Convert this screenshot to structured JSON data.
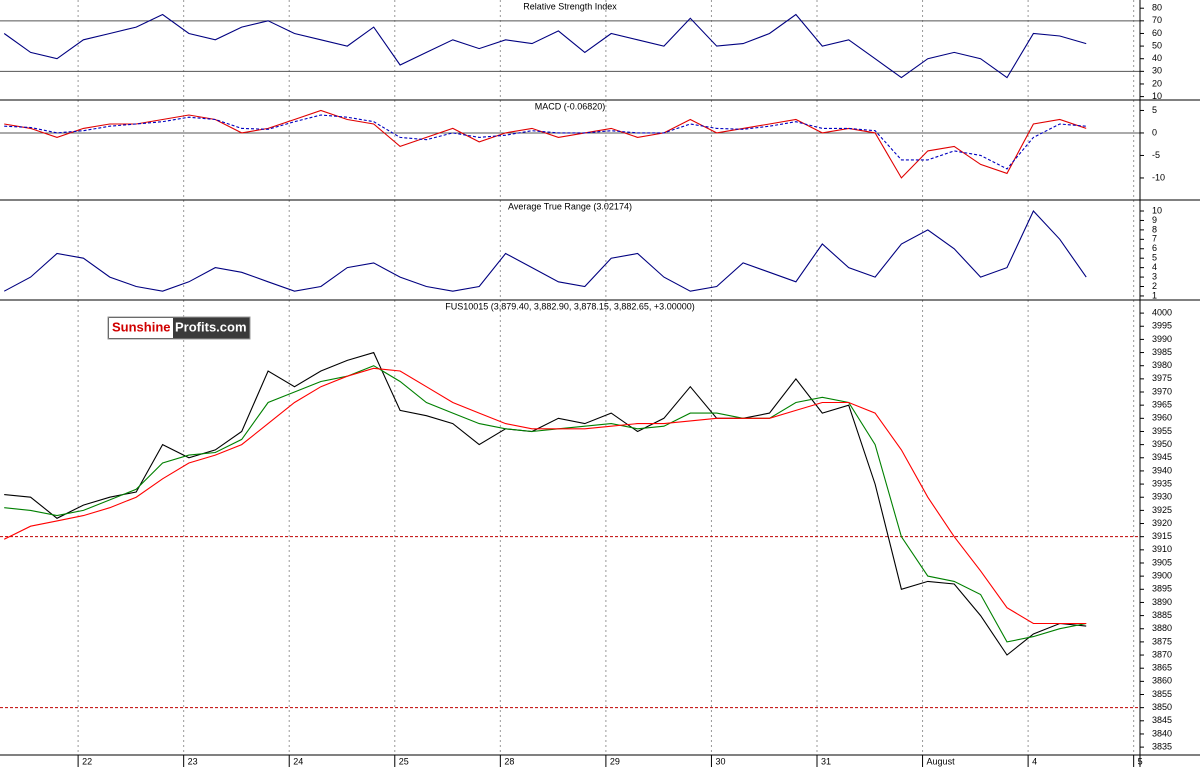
{
  "chart_data": [
    {
      "type": "line",
      "title": "Relative Strength Index",
      "x": [
        -0.7,
        -0.45,
        -0.2,
        0.05,
        0.3,
        0.55,
        0.8,
        1.05,
        1.3,
        1.55,
        1.8,
        2.05,
        2.3,
        2.55,
        2.8,
        3.05,
        3.3,
        3.55,
        3.8,
        4.05,
        4.3,
        4.55,
        4.8,
        5.05,
        5.3,
        5.55,
        5.8,
        6.05,
        6.3,
        6.55,
        6.8,
        7.05,
        7.3,
        7.55,
        7.8,
        8.05,
        8.3,
        8.55,
        8.8,
        9.05,
        9.3,
        9.55
      ],
      "xlim": [
        -0.74,
        10.06
      ],
      "ylim": [
        7.3,
        85.7
      ],
      "yticks": [
        10,
        20,
        30,
        40,
        50,
        60,
        70,
        80
      ],
      "levels": [
        30,
        70
      ],
      "level_color": "#555555",
      "level_dash": false,
      "series": [
        {
          "color": "#000080",
          "dash": false,
          "values": [
            60,
            45,
            40,
            55,
            60,
            65,
            75,
            60,
            55,
            65,
            70,
            60,
            55,
            50,
            65,
            35,
            45,
            55,
            48,
            55,
            52,
            62,
            45,
            60,
            55,
            50,
            72,
            50,
            52,
            60,
            75,
            50,
            55,
            40,
            25,
            40,
            45,
            40,
            25,
            60,
            58,
            52
          ]
        }
      ]
    },
    {
      "type": "line",
      "title": "MACD (-0.06820)",
      "x": [
        -0.7,
        -0.45,
        -0.2,
        0.05,
        0.3,
        0.55,
        0.8,
        1.05,
        1.3,
        1.55,
        1.8,
        2.05,
        2.3,
        2.55,
        2.8,
        3.05,
        3.3,
        3.55,
        3.8,
        4.05,
        4.3,
        4.55,
        4.8,
        5.05,
        5.3,
        5.55,
        5.8,
        6.05,
        6.3,
        6.55,
        6.8,
        7.05,
        7.3,
        7.55,
        7.8,
        8.05,
        8.3,
        8.55,
        8.8,
        9.05,
        9.3,
        9.55
      ],
      "xlim": [
        -0.74,
        10.06
      ],
      "ylim": [
        -14.9,
        7.1
      ],
      "yticks": [
        -10,
        -5,
        0,
        5
      ],
      "levels": [
        0
      ],
      "level_color": "#555555",
      "level_dash": false,
      "series": [
        {
          "color": "#e00000",
          "dash": false,
          "values": [
            2,
            1,
            -1,
            1,
            2,
            2,
            3,
            4,
            3,
            0,
            1,
            3,
            5,
            3,
            2,
            -3,
            -1,
            1,
            -2,
            0,
            1,
            -1,
            0,
            1,
            -1,
            0,
            3,
            0,
            1,
            2,
            3,
            0,
            1,
            0,
            -10,
            -4,
            -3,
            -7,
            -9,
            2,
            3,
            1
          ]
        },
        {
          "color": "#0000c0",
          "dash": true,
          "values": [
            1.5,
            1.2,
            0,
            0.5,
            1.5,
            2,
            2.5,
            3.5,
            3,
            1,
            0.8,
            2.5,
            4,
            3.5,
            2.5,
            -1,
            -1.5,
            0,
            -1,
            -0.5,
            0.5,
            0,
            0,
            0.5,
            0,
            0,
            2,
            1,
            0.8,
            1.5,
            2.5,
            1,
            1,
            0.5,
            -6,
            -6,
            -4,
            -5,
            -8,
            -1,
            2,
            1.5
          ]
        }
      ]
    },
    {
      "type": "line",
      "title": "Average True Range (3.02174)",
      "x": [
        -0.7,
        -0.45,
        -0.2,
        0.05,
        0.3,
        0.55,
        0.8,
        1.05,
        1.3,
        1.55,
        1.8,
        2.05,
        2.3,
        2.55,
        2.8,
        3.05,
        3.3,
        3.55,
        3.8,
        4.05,
        4.3,
        4.55,
        4.8,
        5.05,
        5.3,
        5.55,
        5.8,
        6.05,
        6.3,
        6.55,
        6.8,
        7.05,
        7.3,
        7.55,
        7.8,
        8.05,
        8.3,
        8.55,
        8.8,
        9.05,
        9.3,
        9.55
      ],
      "xlim": [
        -0.74,
        10.06
      ],
      "ylim": [
        0.57,
        11.06
      ],
      "yticks": [
        1,
        2,
        3,
        4,
        5,
        6,
        7,
        8,
        9,
        10
      ],
      "series": [
        {
          "color": "#000080",
          "dash": false,
          "values": [
            1.5,
            3,
            5.5,
            5,
            3,
            2,
            1.5,
            2.5,
            4,
            3.5,
            2.5,
            1.5,
            2,
            4,
            4.5,
            3,
            2,
            1.5,
            2,
            5.5,
            4,
            2.5,
            2,
            5,
            5.5,
            3,
            1.5,
            2,
            4.5,
            3.5,
            2.5,
            6.5,
            4,
            3,
            6.5,
            8,
            6,
            3,
            4,
            10,
            7,
            3
          ]
        }
      ]
    },
    {
      "type": "line",
      "title": "FUS10015 (3,879.40, 3,882.90, 3,878.15, 3,882.65, +3.00000)",
      "x": [
        -0.7,
        -0.45,
        -0.2,
        0.05,
        0.3,
        0.55,
        0.8,
        1.05,
        1.3,
        1.55,
        1.8,
        2.05,
        2.3,
        2.55,
        2.8,
        3.05,
        3.3,
        3.55,
        3.8,
        4.05,
        4.3,
        4.55,
        4.8,
        5.05,
        5.3,
        5.55,
        5.8,
        6.05,
        6.3,
        6.55,
        6.8,
        7.05,
        7.3,
        7.55,
        7.8,
        8.05,
        8.3,
        8.55,
        8.8,
        9.05,
        9.3,
        9.55
      ],
      "xlim": [
        -0.74,
        10.06
      ],
      "ylim": [
        3832,
        4004.6
      ],
      "yticks": [
        3835,
        3840,
        3845,
        3850,
        3855,
        3860,
        3865,
        3870,
        3875,
        3880,
        3885,
        3890,
        3895,
        3900,
        3905,
        3910,
        3915,
        3920,
        3925,
        3930,
        3935,
        3940,
        3945,
        3950,
        3955,
        3960,
        3965,
        3970,
        3975,
        3980,
        3985,
        3990,
        3995,
        4000
      ],
      "xticks": [
        {
          "value": 0,
          "label": "22"
        },
        {
          "value": 1,
          "label": "23"
        },
        {
          "value": 2,
          "label": "24"
        },
        {
          "value": 3,
          "label": "25"
        },
        {
          "value": 4,
          "label": "28"
        },
        {
          "value": 5,
          "label": "29"
        },
        {
          "value": 6,
          "label": "30"
        },
        {
          "value": 7,
          "label": "31"
        },
        {
          "value": 8,
          "label": "August"
        },
        {
          "value": 9,
          "label": "4"
        },
        {
          "value": 10,
          "label": "5"
        }
      ],
      "levels": [
        3915,
        3850
      ],
      "level_color": "#c00000",
      "level_dash": true,
      "series": [
        {
          "color": "#000000",
          "dash": false,
          "values": [
            3931,
            3930,
            3922,
            3927,
            3930,
            3932,
            3950,
            3945,
            3948,
            3955,
            3978,
            3972,
            3978,
            3982,
            3985,
            3963,
            3961,
            3958,
            3950,
            3956,
            3955,
            3960,
            3958,
            3962,
            3955,
            3960,
            3972,
            3960,
            3960,
            3962,
            3975,
            3962,
            3965,
            3935,
            3895,
            3898,
            3897,
            3885,
            3870,
            3878,
            3882,
            3881
          ]
        },
        {
          "color": "#008000",
          "dash": false,
          "values": [
            3926,
            3925,
            3923,
            3925,
            3929,
            3933,
            3943,
            3946,
            3947,
            3952,
            3966,
            3970,
            3974,
            3976,
            3980,
            3974,
            3966,
            3962,
            3958,
            3956,
            3955,
            3956,
            3957,
            3958,
            3956,
            3957,
            3962,
            3962,
            3960,
            3960,
            3966,
            3968,
            3966,
            3950,
            3915,
            3900,
            3898,
            3893,
            3875,
            3877,
            3880,
            3882
          ]
        },
        {
          "color": "#ff0000",
          "dash": false,
          "values": [
            3914,
            3919,
            3921,
            3923,
            3926,
            3930,
            3937,
            3943,
            3946,
            3950,
            3958,
            3966,
            3972,
            3976,
            3979,
            3978,
            3972,
            3966,
            3962,
            3958,
            3956,
            3956,
            3956,
            3957,
            3958,
            3958,
            3959,
            3960,
            3960,
            3960,
            3963,
            3966,
            3966,
            3962,
            3948,
            3930,
            3915,
            3902,
            3888,
            3882,
            3882,
            3882
          ]
        }
      ]
    }
  ],
  "logo": {
    "part1": "Sunshine",
    "part2": "Profits.com"
  }
}
